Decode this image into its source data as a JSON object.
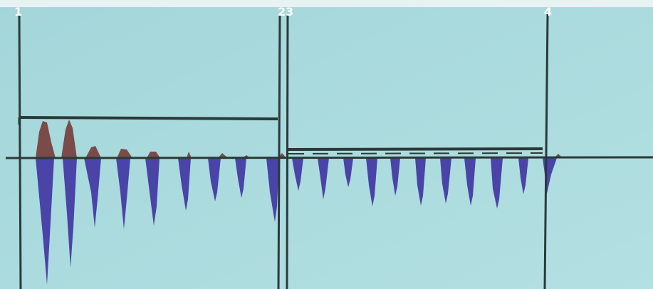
{
  "markers": [
    {
      "label": "1"
    },
    {
      "label": "2"
    },
    {
      "label": "3"
    },
    {
      "label": "4"
    }
  ]
}
